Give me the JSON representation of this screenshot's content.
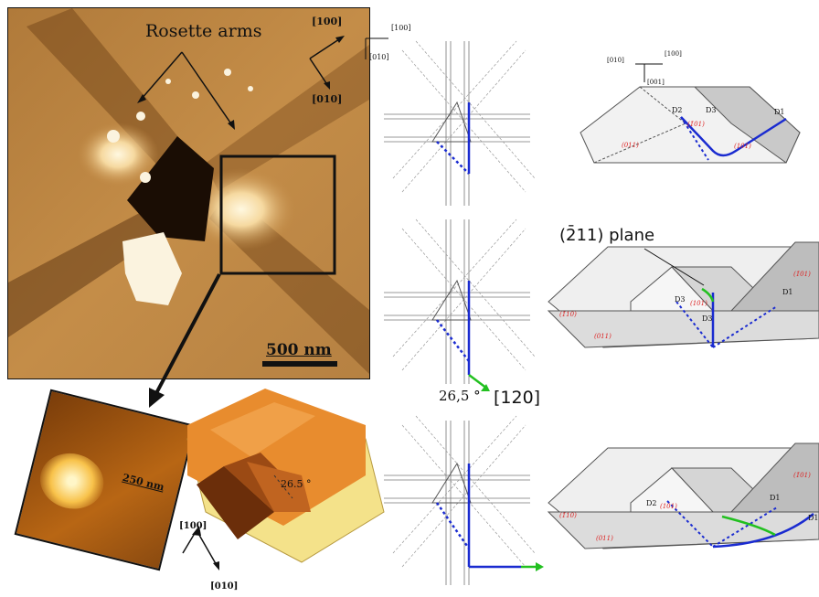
{
  "afm": {
    "rosette_label": "Rosette arms",
    "scale_main": "500 nm",
    "dir_100": "[100]",
    "dir_010": "[010]"
  },
  "zoom": {
    "scale": "250 nm"
  },
  "model3d": {
    "angle": "26.5 °",
    "dir_100": "[100]",
    "dir_010": "[010]"
  },
  "lattice": {
    "axis_100": "[100]",
    "axis_010": "[010]",
    "angle": "26,5 °",
    "dir_120": "[120]"
  },
  "pyramids": {
    "top_axes": {
      "a": "[010]",
      "b": "[100]",
      "c": "[001]"
    },
    "plane_label": "(2̄11) plane",
    "d1": "D1",
    "d2": "D2",
    "d3": "D3",
    "faces_top": [
      "(1̄01)",
      "(011)",
      "(101)"
    ],
    "faces_mid": [
      "(1̄01)",
      "(011)",
      "(101)",
      "(1̄10)"
    ],
    "faces_bot": [
      "(1̄01)",
      "(011)",
      "(101)",
      "(1̄10)"
    ]
  }
}
